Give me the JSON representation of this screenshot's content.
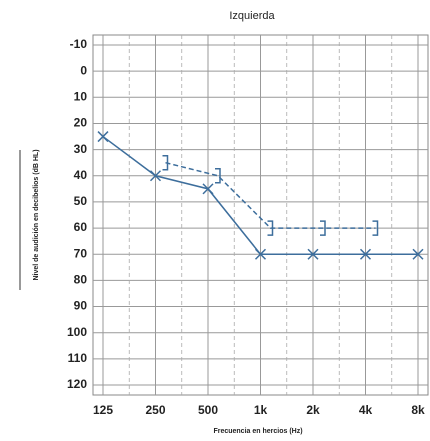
{
  "chart_data": {
    "type": "line",
    "title": "Izquierda",
    "x_label": "Frecuencia en hercios (Hz)",
    "y_label": "Nivel de audición en decibelios (dB HL)",
    "categories": [
      "125",
      "250",
      "500",
      "1k",
      "2k",
      "4k",
      "8k"
    ],
    "ylim": [
      -10,
      120
    ],
    "y_inverted": true,
    "yticks": [
      -10,
      0,
      10,
      20,
      30,
      40,
      50,
      60,
      70,
      80,
      90,
      100,
      110,
      120
    ],
    "grid": true,
    "series": [
      {
        "color": "#3d6e9c",
        "marker": "x",
        "dashed": false,
        "values": [
          25,
          40,
          45,
          70,
          70,
          70,
          70
        ]
      },
      {
        "color": "#3d6e9c",
        "marker": "bracket",
        "dashed": true,
        "values": [
          null,
          35,
          40,
          60,
          60,
          60,
          null
        ]
      }
    ]
  }
}
